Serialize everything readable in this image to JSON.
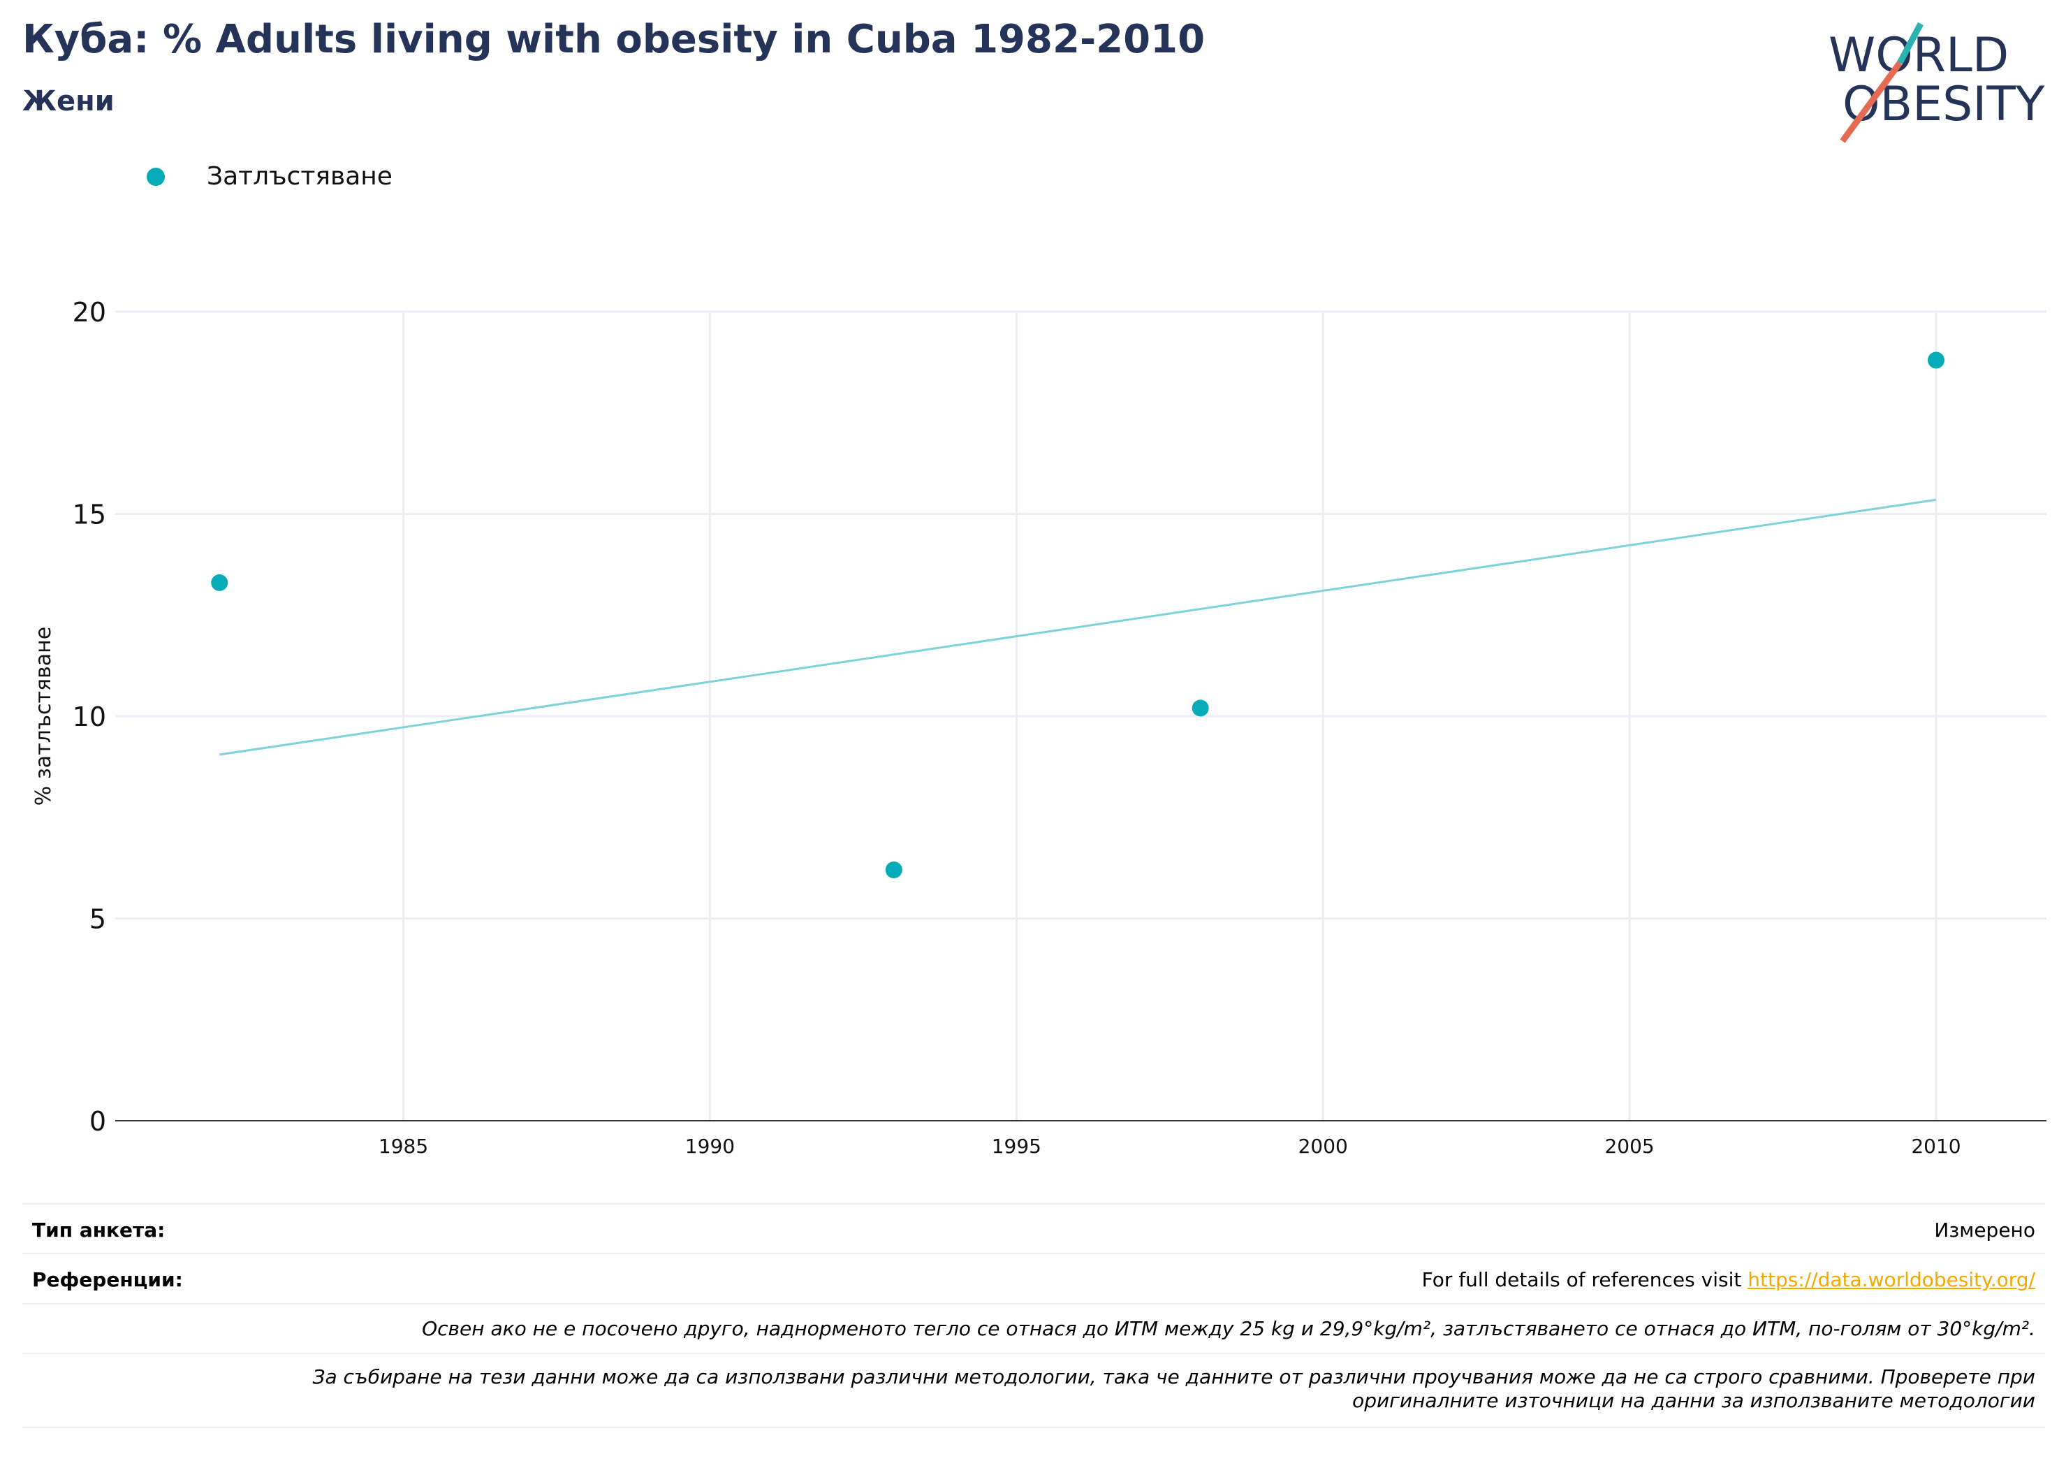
{
  "header": {
    "title": "Куба: % Adults living with obesity in Cuba 1982-2010",
    "subtitle": "Жени"
  },
  "logo": {
    "line1": "WORLD",
    "line2": "OBESITY",
    "accent_teal": "#2bb3b1",
    "accent_coral": "#e56a54",
    "text_color": "#253359"
  },
  "legend": {
    "items": [
      {
        "label": "Затлъстяване",
        "color": "#05abb6"
      }
    ]
  },
  "chart_data": {
    "type": "scatter",
    "ylabel": "% затлъстяване",
    "xlabel": "",
    "x_ticks": [
      1985,
      1990,
      1995,
      2000,
      2005,
      2010
    ],
    "y_ticks": [
      0,
      5,
      10,
      15,
      20
    ],
    "xlim": [
      1980.3,
      2011.8
    ],
    "ylim": [
      0,
      20
    ],
    "grid": true,
    "series": [
      {
        "name": "Затлъстяване",
        "color": "#05abb6",
        "points": [
          {
            "x": 1982,
            "y": 13.3
          },
          {
            "x": 1993,
            "y": 6.2
          },
          {
            "x": 1998,
            "y": 10.2
          },
          {
            "x": 2010,
            "y": 18.8
          }
        ]
      }
    ],
    "trendline": {
      "color": "#7dd3d8",
      "points": [
        {
          "x": 1982,
          "y": 9.05
        },
        {
          "x": 2010,
          "y": 15.35
        }
      ]
    }
  },
  "footer": {
    "survey_type_label": "Тип анкета:",
    "survey_type_value": "Измерено",
    "references_label": "Референции:",
    "references_text": "For full details of references visit ",
    "references_link": "https://data.worldobesity.org/",
    "note1": "Освен ако не е посочено друго, наднорменото тегло се отнася до ИТМ между 25 kg и 29,9°kg/m², затлъстяването се отнася до ИТМ, по-голям от 30°kg/m².",
    "note2_line1": "За събиране на тези данни може да са използвани различни методологии, така че данните от различни проучвания може да не са строго сравними. Проверете при",
    "note2_line2": "оригиналните източници на данни за използваните методологии"
  }
}
